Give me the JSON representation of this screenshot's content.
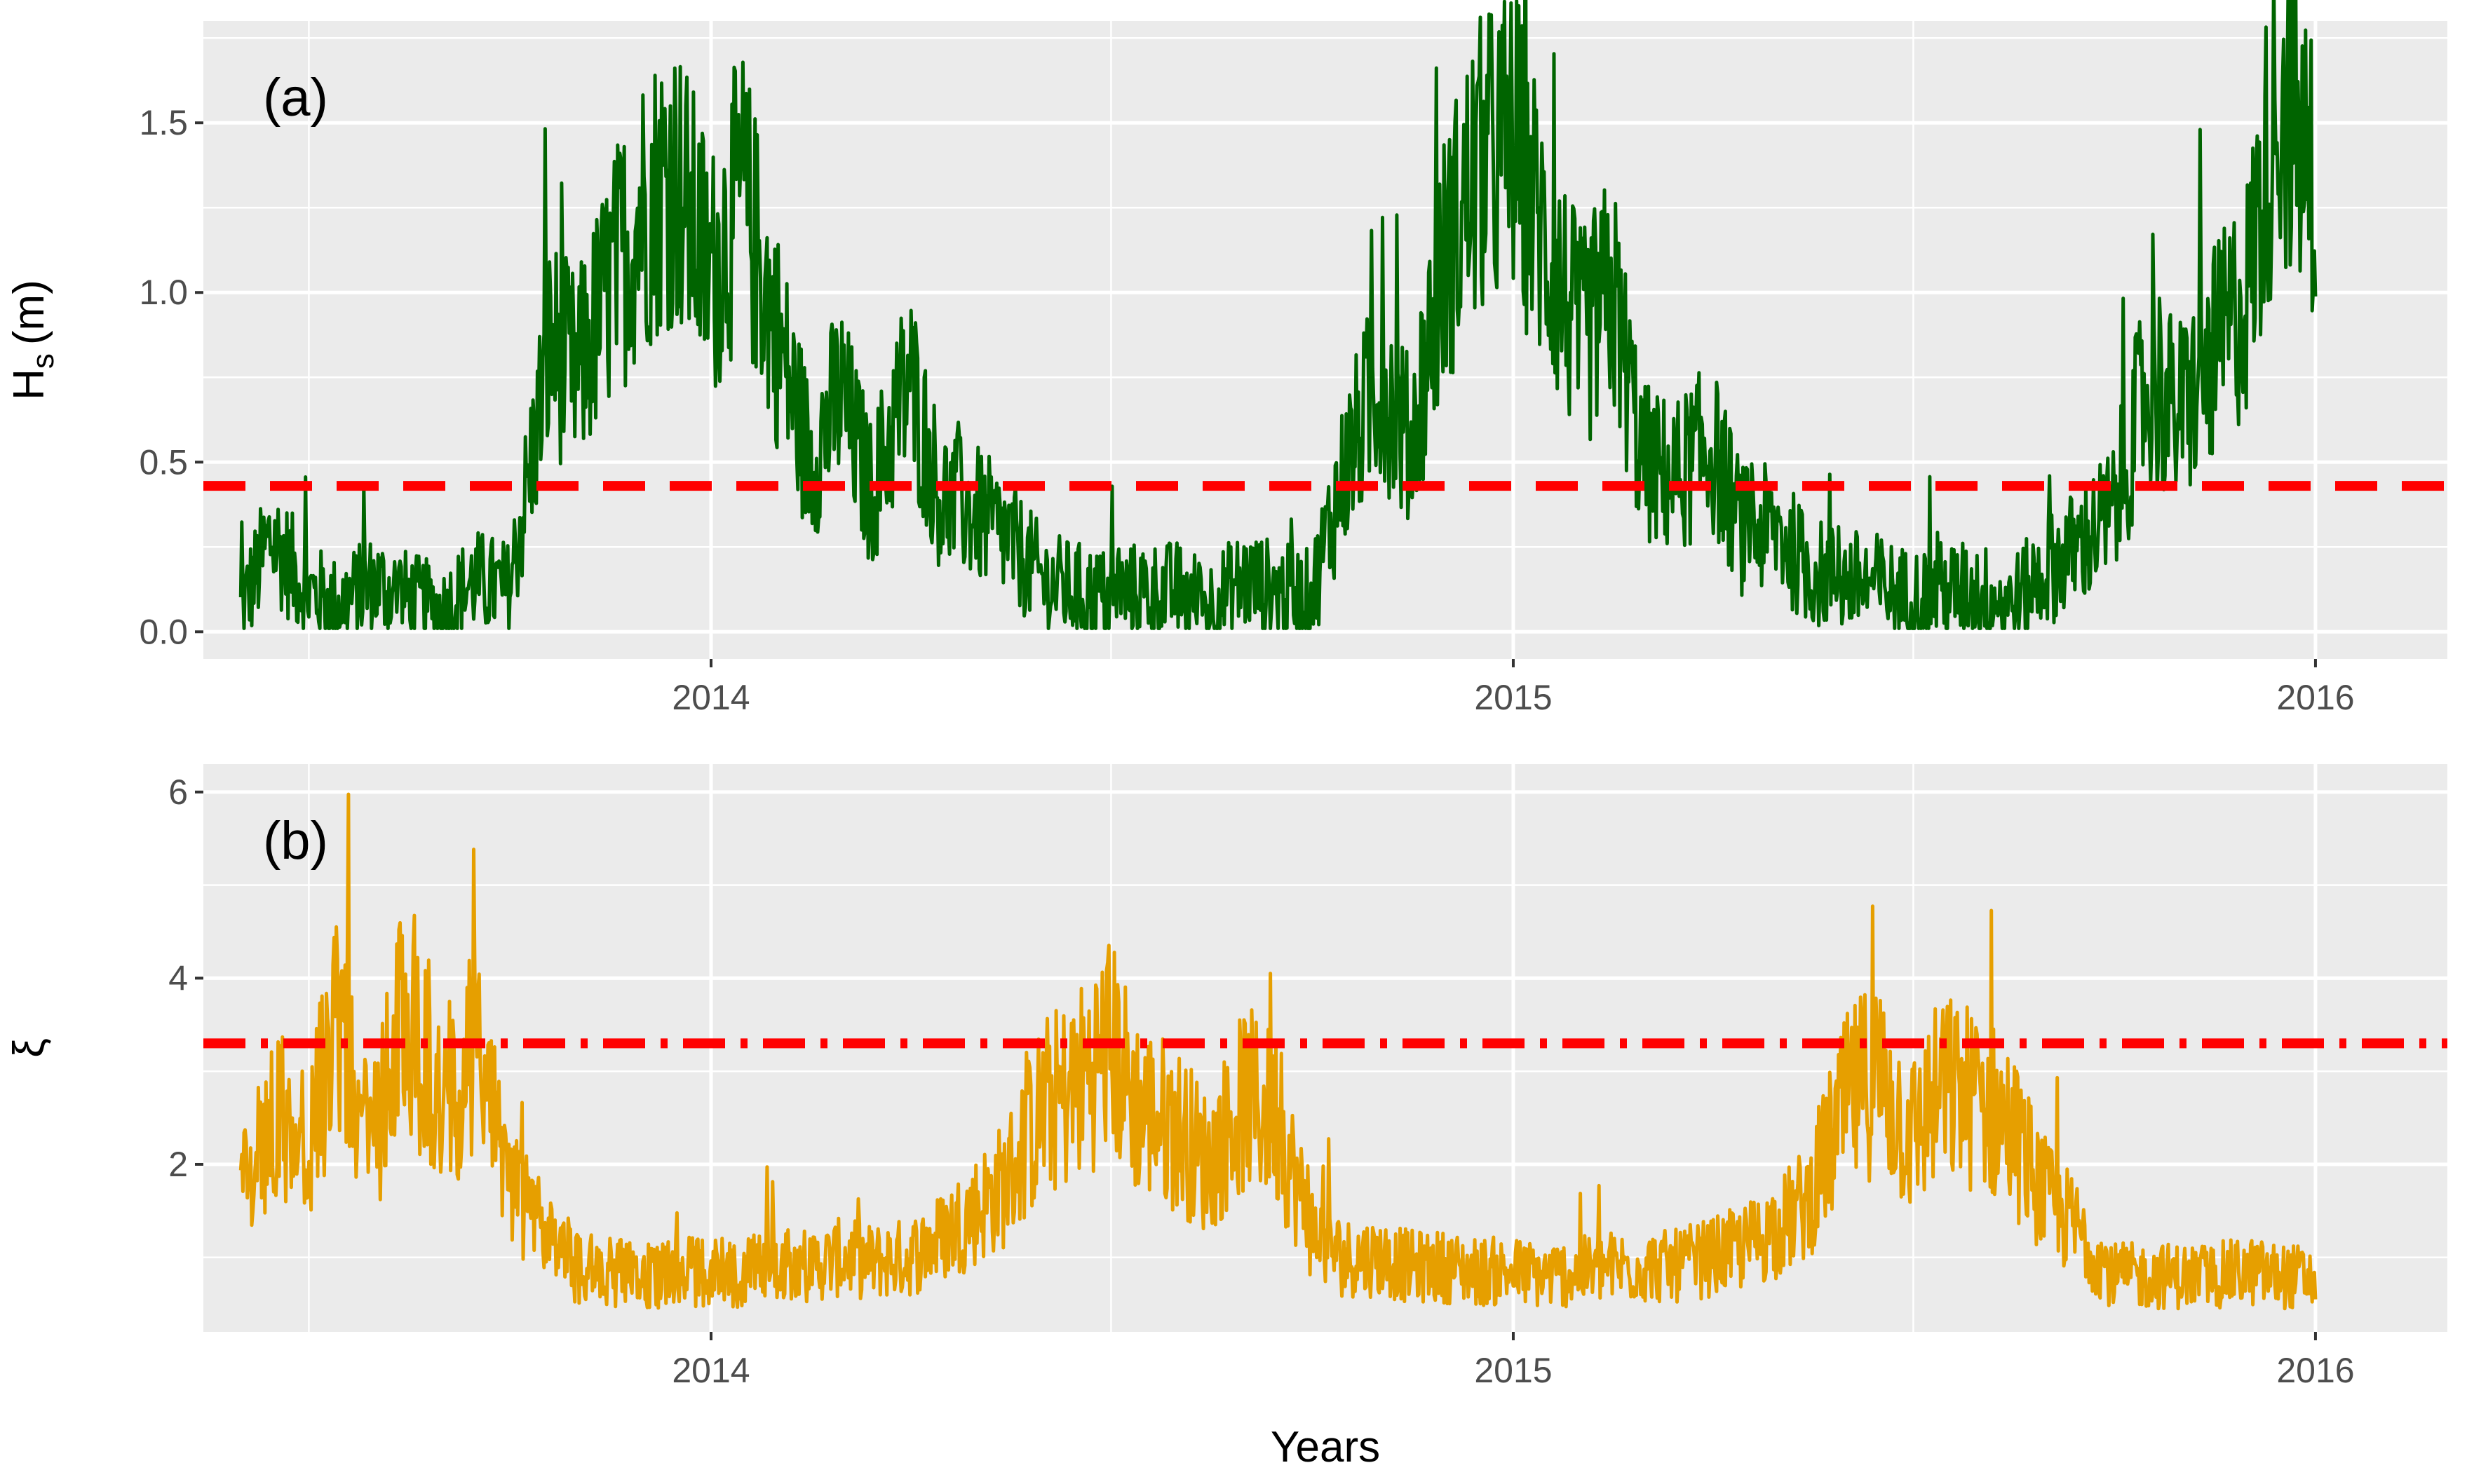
{
  "chart_data": [
    {
      "type": "line",
      "panel_label": "(a)",
      "ylabel": "H",
      "ylabel_sub": "s",
      "ylabel_unit": "(m)",
      "xlabel": "",
      "x_ticks": [
        "2014",
        "2015",
        "2016"
      ],
      "y_ticks": [
        "0.0",
        "0.5",
        "1.0",
        "1.5"
      ],
      "xlim": [
        "2013-05-15",
        "2016-03-01"
      ],
      "ylim": [
        -0.08,
        1.8
      ],
      "grid": true,
      "series_color": "#006400",
      "threshold": {
        "value": 0.43,
        "style": "dashed",
        "color": "#ff0000"
      },
      "series": [
        {
          "x": [
            "2013-06-01",
            "2013-06-15",
            "2013-07-01",
            "2013-07-15",
            "2013-08-01",
            "2013-08-15",
            "2013-09-01",
            "2013-09-15",
            "2013-10-01",
            "2013-10-10",
            "2013-10-20",
            "2013-11-01",
            "2013-11-15",
            "2013-12-01",
            "2013-12-15",
            "2014-01-01",
            "2014-01-15",
            "2014-02-01",
            "2014-02-15",
            "2014-03-01",
            "2014-03-15",
            "2014-04-01",
            "2014-04-15",
            "2014-05-01",
            "2014-05-15",
            "2014-06-01",
            "2014-06-15",
            "2014-07-01",
            "2014-07-15",
            "2014-08-01",
            "2014-08-15",
            "2014-09-01",
            "2014-09-15",
            "2014-10-01",
            "2014-10-15",
            "2014-11-01",
            "2014-11-15",
            "2014-12-01",
            "2014-12-15",
            "2015-01-01",
            "2015-01-15",
            "2015-02-01",
            "2015-02-15",
            "2015-03-01",
            "2015-03-15",
            "2015-04-01",
            "2015-04-15",
            "2015-05-01",
            "2015-05-15",
            "2015-06-01",
            "2015-06-15",
            "2015-07-01",
            "2015-07-15",
            "2015-08-01",
            "2015-08-15",
            "2015-09-01",
            "2015-09-15",
            "2015-10-01",
            "2015-10-15",
            "2015-11-01",
            "2015-11-15",
            "2015-12-01",
            "2015-12-15",
            "2016-01-01"
          ],
          "values": [
            0.06,
            0.28,
            0.12,
            0.08,
            0.14,
            0.1,
            0.06,
            0.15,
            0.12,
            0.45,
            0.85,
            0.75,
            1.0,
            1.25,
            1.35,
            1.05,
            1.3,
            0.85,
            0.5,
            0.7,
            0.4,
            0.75,
            0.4,
            0.35,
            0.28,
            0.15,
            0.12,
            0.1,
            0.12,
            0.12,
            0.08,
            0.15,
            0.12,
            0.1,
            0.45,
            0.75,
            0.55,
            1.1,
            1.35,
            1.45,
            1.15,
            0.85,
            1.0,
            0.5,
            0.45,
            0.55,
            0.3,
            0.3,
            0.18,
            0.15,
            0.14,
            0.1,
            0.12,
            0.12,
            0.08,
            0.18,
            0.25,
            0.35,
            0.7,
            0.65,
            0.8,
            1.0,
            1.6,
            1.3
          ]
        }
      ]
    },
    {
      "type": "line",
      "panel_label": "(b)",
      "ylabel": "ξ",
      "xlabel": "Years",
      "x_ticks": [
        "2014",
        "2015",
        "2016"
      ],
      "y_ticks": [
        "2",
        "4",
        "6"
      ],
      "xlim": [
        "2013-05-15",
        "2016-03-01"
      ],
      "ylim": [
        0.2,
        6.3
      ],
      "grid": true,
      "series_color": "#e69f00",
      "threshold": {
        "value": 3.3,
        "style": "dashdot",
        "color": "#ff0000"
      },
      "series": [
        {
          "x": [
            "2013-06-01",
            "2013-06-15",
            "2013-07-01",
            "2013-07-15",
            "2013-08-01",
            "2013-08-15",
            "2013-09-01",
            "2013-09-15",
            "2013-10-01",
            "2013-10-15",
            "2013-11-01",
            "2013-11-15",
            "2013-12-01",
            "2013-12-15",
            "2014-01-01",
            "2014-01-15",
            "2014-02-01",
            "2014-02-15",
            "2014-03-01",
            "2014-03-15",
            "2014-04-01",
            "2014-04-15",
            "2014-05-01",
            "2014-05-15",
            "2014-06-01",
            "2014-06-15",
            "2014-07-01",
            "2014-07-15",
            "2014-08-01",
            "2014-08-15",
            "2014-09-01",
            "2014-09-15",
            "2014-10-01",
            "2014-10-15",
            "2014-11-01",
            "2014-11-15",
            "2014-12-01",
            "2014-12-15",
            "2015-01-01",
            "2015-01-15",
            "2015-02-01",
            "2015-02-15",
            "2015-03-01",
            "2015-03-15",
            "2015-04-01",
            "2015-04-15",
            "2015-05-01",
            "2015-05-15",
            "2015-06-01",
            "2015-06-15",
            "2015-07-01",
            "2015-07-15",
            "2015-08-01",
            "2015-08-15",
            "2015-09-01",
            "2015-09-15",
            "2015-10-01",
            "2015-10-15",
            "2015-11-01",
            "2015-11-15",
            "2015-12-01",
            "2015-12-15",
            "2016-01-01"
          ],
          "values": [
            1.6,
            2.6,
            2.2,
            3.4,
            2.3,
            3.8,
            2.6,
            3.2,
            1.8,
            1.3,
            0.9,
            0.85,
            0.8,
            0.85,
            0.85,
            0.8,
            1.0,
            0.9,
            1.0,
            0.95,
            1.0,
            1.2,
            1.5,
            1.8,
            2.6,
            2.8,
            3.3,
            2.6,
            2.4,
            2.0,
            2.7,
            2.5,
            1.3,
            1.0,
            1.0,
            0.9,
            0.9,
            0.85,
            0.85,
            0.8,
            0.85,
            0.9,
            0.9,
            0.9,
            1.0,
            1.1,
            1.3,
            1.6,
            2.6,
            3.0,
            2.3,
            2.8,
            2.7,
            2.4,
            1.6,
            1.3,
            0.8,
            0.8,
            0.8,
            0.8,
            0.85,
            0.8,
            0.78
          ]
        }
      ]
    }
  ]
}
